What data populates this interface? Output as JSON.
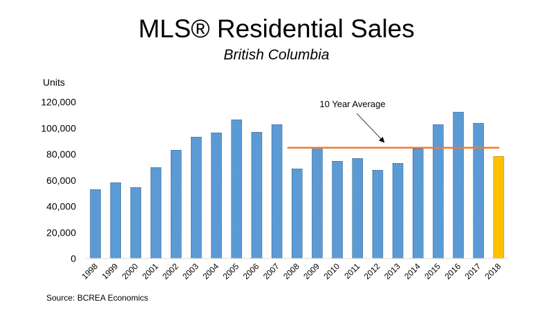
{
  "chart_data": {
    "type": "bar",
    "title": "MLS® Residential Sales",
    "subtitle": "British Columbia",
    "ylabel": "Units",
    "xlabel": "",
    "ylim": [
      0,
      120000
    ],
    "yticks": [
      0,
      20000,
      40000,
      60000,
      80000,
      100000,
      120000
    ],
    "ytick_labels": [
      "0",
      "20,000",
      "40,000",
      "60,000",
      "80,000",
      "100,000",
      "120,000"
    ],
    "grid": false,
    "categories": [
      "1998",
      "1999",
      "2000",
      "2001",
      "2002",
      "2003",
      "2004",
      "2005",
      "2006",
      "2007",
      "2008",
      "2009",
      "2010",
      "2011",
      "2012",
      "2013",
      "2014",
      "2015",
      "2016",
      "2017",
      "2018"
    ],
    "values": [
      52900,
      58200,
      54500,
      69800,
      83100,
      93200,
      96400,
      106400,
      96900,
      102700,
      68800,
      84500,
      74600,
      76700,
      67700,
      73000,
      84200,
      102700,
      112300,
      103800,
      78300
    ],
    "bar_colors": {
      "default": "#5b9bd5",
      "highlight": "#ffc000",
      "highlight_category": "2018"
    },
    "reference_line": {
      "label": "10 Year Average",
      "value": 85000,
      "from_category": "2008",
      "to_category": "2018",
      "color": "#ed7d31"
    },
    "source": "Source: BCREA Economics"
  }
}
